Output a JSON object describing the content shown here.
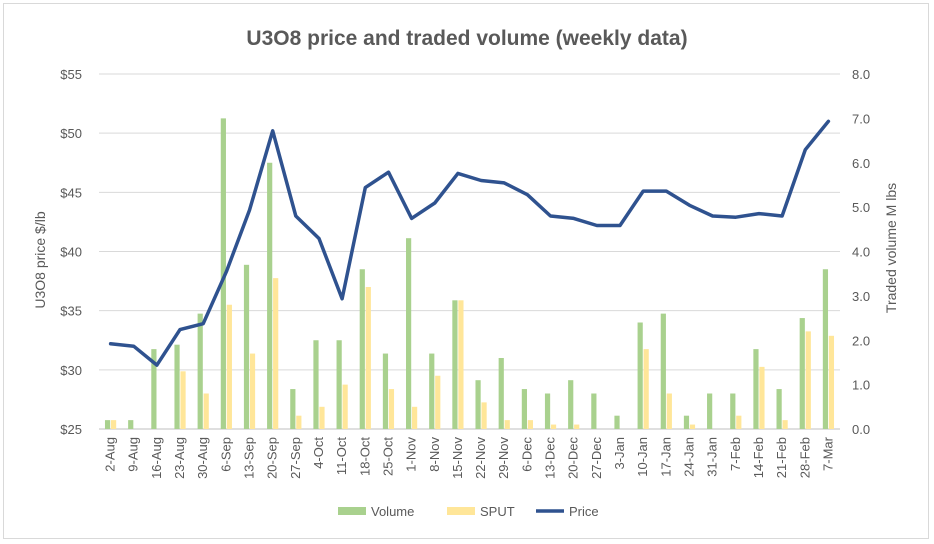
{
  "chart_data": {
    "type": "bar+line",
    "title": "U3O8 price and traded volume (weekly data)",
    "ylabel": "U3O8 price $/lb",
    "y2label": "Traded volume M lbs",
    "ylim": [
      25,
      55
    ],
    "y2lim": [
      0,
      8
    ],
    "yticks": [
      "$25",
      "$30",
      "$35",
      "$40",
      "$45",
      "$50",
      "$55"
    ],
    "y2ticks": [
      "0.0",
      "1.0",
      "2.0",
      "3.0",
      "4.0",
      "5.0",
      "6.0",
      "7.0",
      "8.0"
    ],
    "categories": [
      "2-Aug",
      "9-Aug",
      "16-Aug",
      "23-Aug",
      "30-Aug",
      "6-Sep",
      "13-Sep",
      "20-Sep",
      "27-Sep",
      "4-Oct",
      "11-Oct",
      "18-Oct",
      "25-Oct",
      "1-Nov",
      "8-Nov",
      "15-Nov",
      "22-Nov",
      "29-Nov",
      "6-Dec",
      "13-Dec",
      "20-Dec",
      "27-Dec",
      "3-Jan",
      "10-Jan",
      "17-Jan",
      "24-Jan",
      "31-Jan",
      "7-Feb",
      "14-Feb",
      "21-Feb",
      "28-Feb",
      "7-Mar"
    ],
    "series": [
      {
        "name": "Volume",
        "type": "bar",
        "axis": "right",
        "color": "#a9d18e",
        "values": [
          0.2,
          0.2,
          1.8,
          1.9,
          2.6,
          7.0,
          3.7,
          6.0,
          0.9,
          2.0,
          2.0,
          3.6,
          1.7,
          4.3,
          1.7,
          2.9,
          1.1,
          1.6,
          0.9,
          0.8,
          1.1,
          0.8,
          0.3,
          2.4,
          2.6,
          0.3,
          0.8,
          0.8,
          1.8,
          0.9,
          2.5,
          3.6
        ]
      },
      {
        "name": "SPUT",
        "type": "bar",
        "axis": "right",
        "color": "#ffe699",
        "values": [
          0.2,
          0.0,
          0.0,
          1.3,
          0.8,
          2.8,
          1.7,
          3.4,
          0.3,
          0.5,
          1.0,
          3.2,
          0.9,
          0.5,
          1.2,
          2.9,
          0.6,
          0.2,
          0.2,
          0.1,
          0.1,
          0.0,
          0.0,
          1.8,
          0.8,
          0.1,
          0.0,
          0.3,
          1.4,
          0.2,
          2.2,
          2.1
        ]
      },
      {
        "name": "Price",
        "type": "line",
        "axis": "left",
        "color": "#2f528f",
        "values": [
          32.2,
          32.0,
          30.4,
          33.4,
          33.9,
          38.3,
          43.5,
          50.2,
          43.0,
          41.1,
          36.0,
          45.4,
          46.7,
          42.8,
          44.1,
          46.6,
          46.0,
          45.8,
          44.8,
          43.0,
          42.8,
          42.2,
          42.2,
          45.1,
          45.1,
          43.9,
          43.0,
          42.9,
          43.2,
          43.0,
          48.6,
          51.0
        ]
      }
    ],
    "legend": [
      "Volume",
      "SPUT",
      "Price"
    ],
    "legend_position": "bottom",
    "grid": true
  }
}
